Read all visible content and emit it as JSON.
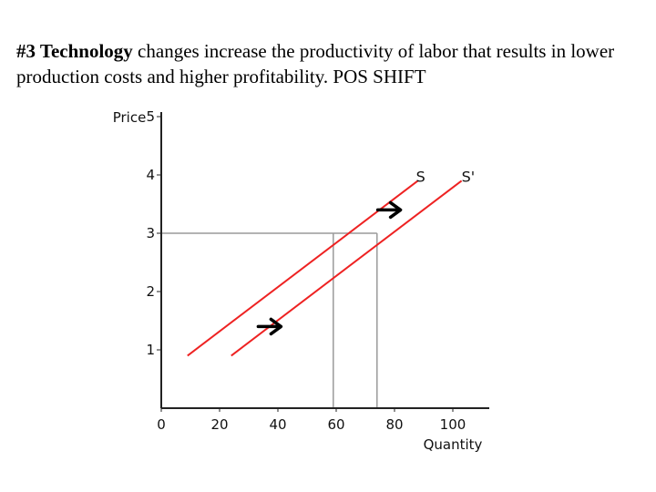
{
  "caption": {
    "bold": "#3 Technology",
    "rest": " changes  increase the productivity of labor that results in lower production costs and higher profitability.   POS SHIFT"
  },
  "chart_data": {
    "type": "line",
    "xlabel": "Quantity",
    "ylabel": "Price",
    "xlim": [
      0,
      110
    ],
    "ylim": [
      0,
      5
    ],
    "x_ticks": [
      "0",
      "20",
      "40",
      "60",
      "80",
      "100"
    ],
    "y_ticks": [
      "1",
      "2",
      "3",
      "4",
      "5"
    ],
    "grid": false,
    "series": [
      {
        "name": "S",
        "color": "#ee2222",
        "points": [
          [
            9,
            0.9
          ],
          [
            88,
            3.9
          ]
        ]
      },
      {
        "name": "S'",
        "color": "#ee2222",
        "points": [
          [
            24,
            0.9
          ],
          [
            103,
            3.9
          ]
        ]
      }
    ],
    "reference_lines": [
      {
        "y": 3,
        "x_from": 0,
        "x_to": 74
      },
      {
        "x": 59,
        "y_from": 0,
        "y_to": 3
      },
      {
        "x": 74,
        "y_from": 0,
        "y_to": 3
      }
    ],
    "arrows": [
      {
        "x": 37,
        "y": 1.4,
        "direction": "right"
      },
      {
        "x": 78,
        "y": 3.4,
        "direction": "right"
      }
    ]
  }
}
